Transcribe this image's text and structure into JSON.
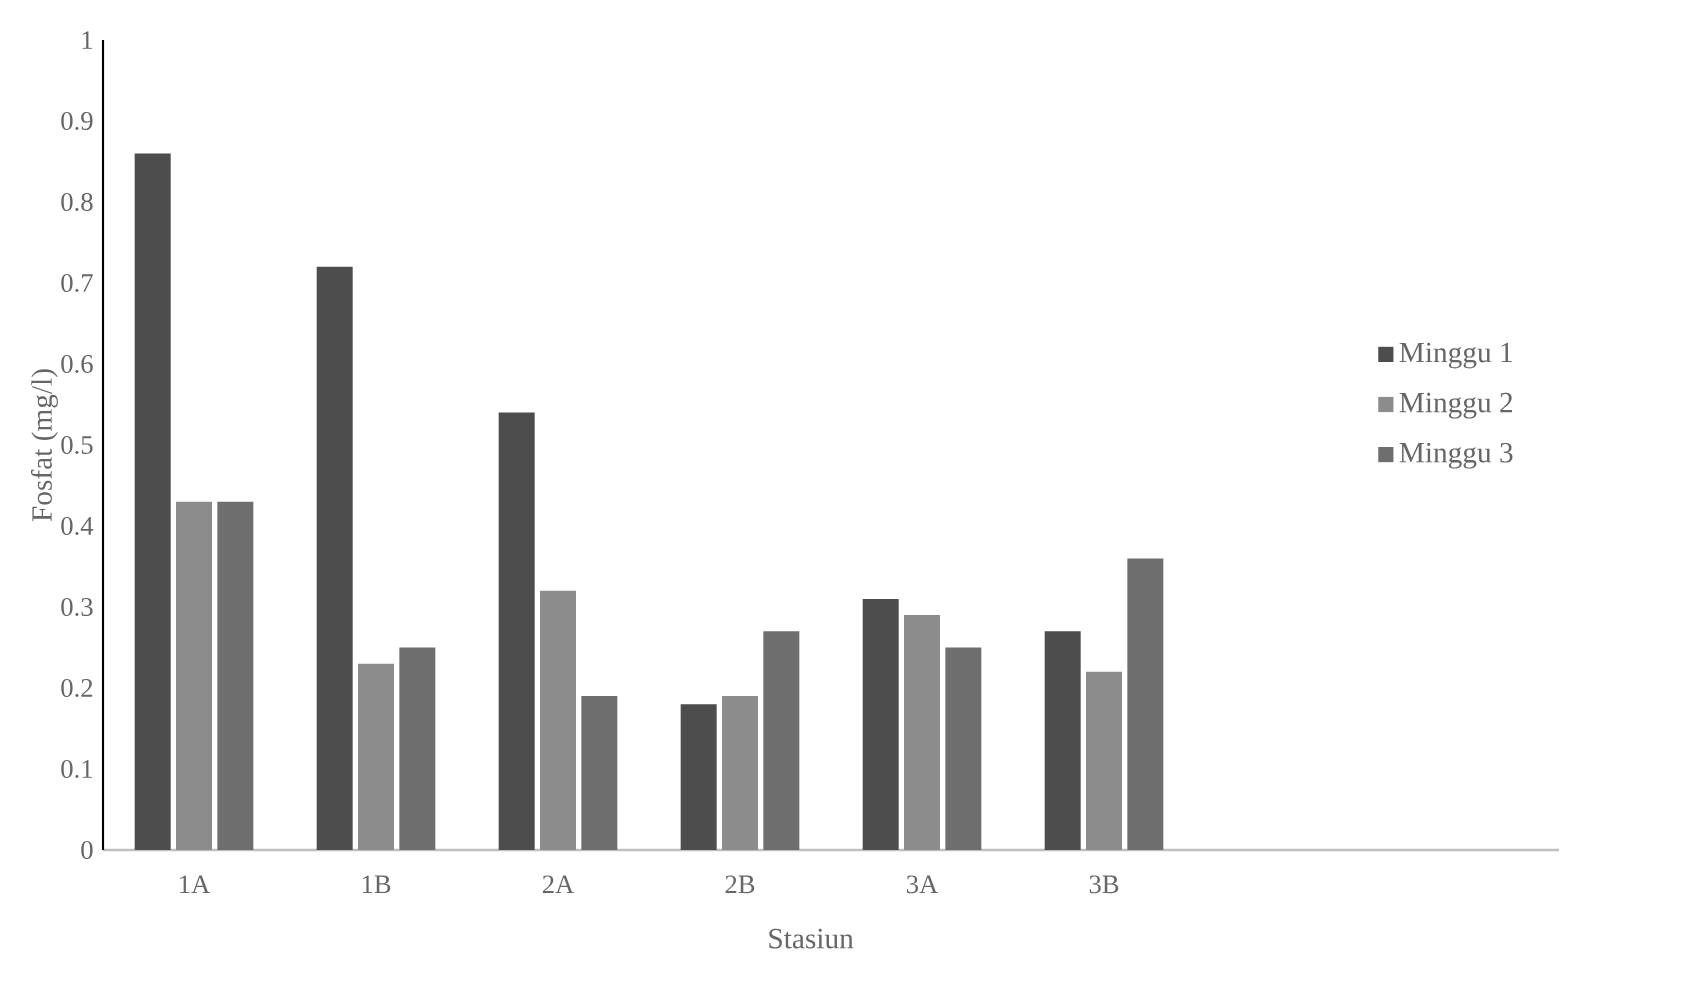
{
  "chart_data": {
    "type": "bar",
    "xlabel": "Stasiun",
    "ylabel": "Fosfat (mg/l)",
    "categories": [
      "1A",
      "1B",
      "2A",
      "2B",
      "3A",
      "3B",
      null,
      null
    ],
    "series": [
      {
        "name": "Minggu 1",
        "color": "#4d4d4d",
        "values": [
          0.86,
          0.72,
          0.54,
          0.18,
          0.31,
          0.27,
          null,
          null
        ]
      },
      {
        "name": "Minggu 2",
        "color": "#8c8c8c",
        "values": [
          0.43,
          0.23,
          0.32,
          0.19,
          0.29,
          0.22,
          null,
          null
        ]
      },
      {
        "name": "Minggu 3",
        "color": "#6e6e6e",
        "values": [
          0.43,
          0.25,
          0.19,
          0.27,
          0.25,
          0.36,
          null,
          null
        ]
      }
    ],
    "ylim": [
      0,
      1
    ],
    "yticks": [
      0,
      0.1,
      0.2,
      0.3,
      0.4,
      0.5,
      0.6,
      0.7,
      0.8,
      0.9,
      1
    ],
    "grid": false,
    "legend": "right"
  }
}
